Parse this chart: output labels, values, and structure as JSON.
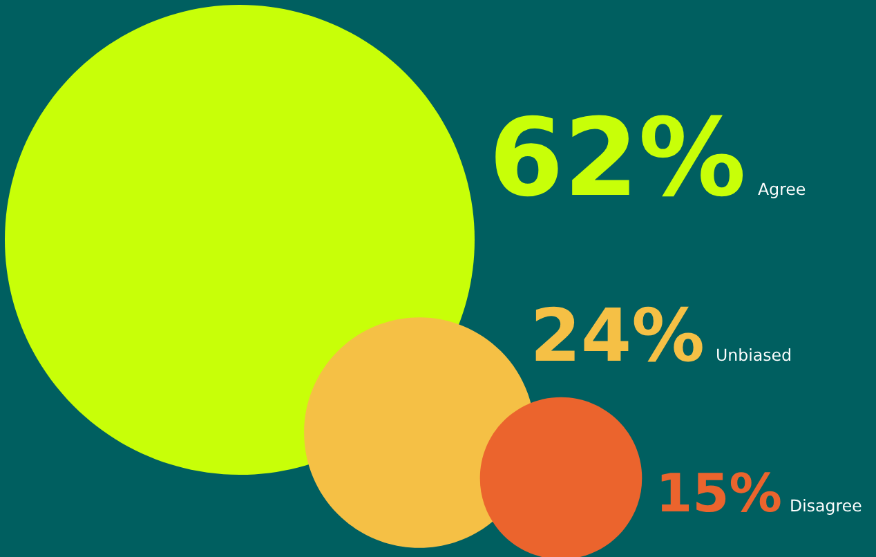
{
  "chart_data": {
    "type": "other",
    "categories": [
      "Agree",
      "Unbiased",
      "Disagree"
    ],
    "values": [
      62,
      24,
      15
    ],
    "value_labels": [
      "62%",
      "24%",
      "15%"
    ],
    "colors": [
      "#c8ff08",
      "#f5c045",
      "#eb642d"
    ]
  }
}
